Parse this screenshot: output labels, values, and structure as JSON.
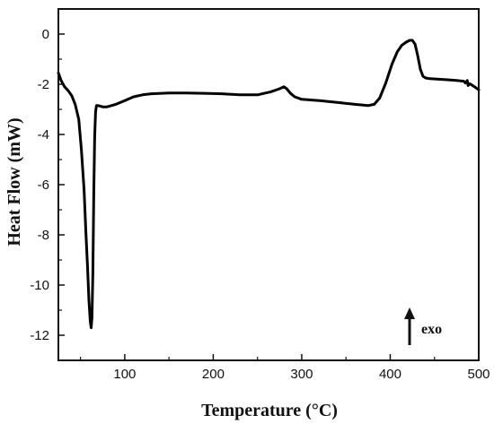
{
  "chart_data": {
    "type": "line",
    "title": "",
    "xlabel": "Temperature (°C)",
    "ylabel": "Heat Flow (mW)",
    "xlim": [
      25,
      500
    ],
    "ylim": [
      -13,
      1
    ],
    "x_ticks": [
      100,
      200,
      300,
      400,
      500
    ],
    "y_ticks": [
      0,
      -2,
      -4,
      -6,
      -8,
      -10,
      -12
    ],
    "grid": false,
    "series": [
      {
        "color": "#000000",
        "x": [
          25,
          28,
          32,
          36,
          40,
          44,
          48,
          51,
          54,
          56,
          58,
          59.5,
          61,
          62,
          63,
          64,
          65,
          66,
          67,
          68,
          70,
          75,
          80,
          90,
          100,
          110,
          120,
          130,
          150,
          170,
          190,
          210,
          230,
          250,
          265,
          275,
          280,
          283,
          287,
          292,
          300,
          320,
          340,
          360,
          375,
          382,
          388,
          395,
          402,
          408,
          413,
          418,
          422,
          425,
          428,
          431,
          434,
          437,
          440,
          445,
          455,
          465,
          475,
          483,
          485,
          487,
          488,
          490,
          493,
          496,
          500
        ],
        "y": [
          -1.55,
          -1.85,
          -2.1,
          -2.25,
          -2.45,
          -2.8,
          -3.4,
          -4.6,
          -6.2,
          -7.8,
          -9.3,
          -10.6,
          -11.45,
          -11.7,
          -11.3,
          -9.5,
          -6.4,
          -4.1,
          -3.1,
          -2.85,
          -2.85,
          -2.9,
          -2.9,
          -2.8,
          -2.65,
          -2.5,
          -2.42,
          -2.38,
          -2.35,
          -2.35,
          -2.36,
          -2.38,
          -2.42,
          -2.42,
          -2.3,
          -2.18,
          -2.1,
          -2.18,
          -2.35,
          -2.5,
          -2.6,
          -2.65,
          -2.72,
          -2.8,
          -2.85,
          -2.8,
          -2.55,
          -1.95,
          -1.2,
          -0.7,
          -0.45,
          -0.32,
          -0.25,
          -0.25,
          -0.4,
          -0.85,
          -1.4,
          -1.68,
          -1.75,
          -1.78,
          -1.8,
          -1.82,
          -1.85,
          -1.88,
          -1.95,
          -1.85,
          -2.05,
          -1.98,
          -2.05,
          -2.12,
          -2.22
        ]
      }
    ],
    "annotations": [
      {
        "text": "exo",
        "arrow": "up"
      }
    ]
  }
}
